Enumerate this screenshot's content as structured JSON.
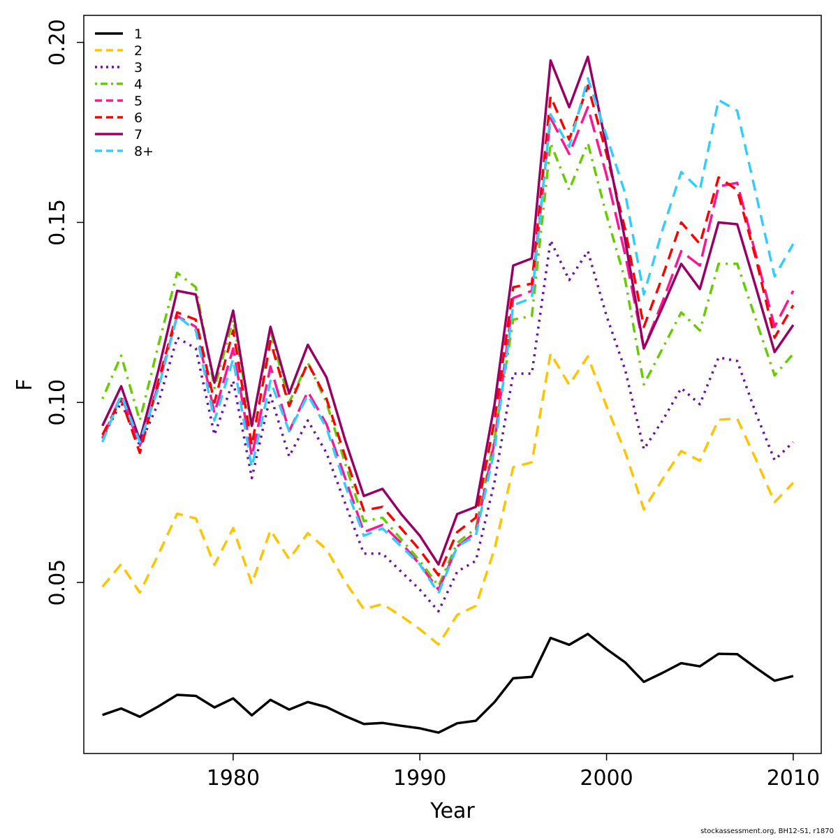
{
  "footer_text": "stockassessment.org, BH12-S1, r1870",
  "chart_data": {
    "type": "line",
    "title": "",
    "xlabel": "Year",
    "ylabel": "F",
    "xlim": [
      1972,
      2011.5
    ],
    "ylim": [
      0.0025,
      0.2075
    ],
    "xticks": [
      1980,
      1990,
      2000,
      2010
    ],
    "yticks": [
      0.05,
      0.1,
      0.15,
      0.2
    ],
    "ytick_labels": [
      "0.05",
      "0.10",
      "0.15",
      "0.20"
    ],
    "grid": false,
    "legend_position": "top-left",
    "x": [
      1973,
      1974,
      1975,
      1976,
      1977,
      1978,
      1979,
      1980,
      1981,
      1982,
      1983,
      1984,
      1985,
      1986,
      1987,
      1988,
      1989,
      1990,
      1991,
      1992,
      1993,
      1994,
      1995,
      1996,
      1997,
      1998,
      1999,
      2000,
      2001,
      2002,
      2003,
      2004,
      2005,
      2006,
      2007,
      2008,
      2009,
      2010
    ],
    "series": [
      {
        "name": "1",
        "color": "#000000",
        "dash": "solid",
        "values": [
          0.0132,
          0.015,
          0.0127,
          0.0156,
          0.0188,
          0.0185,
          0.0153,
          0.0178,
          0.0131,
          0.0174,
          0.0147,
          0.0168,
          0.0154,
          0.0129,
          0.0107,
          0.011,
          0.0102,
          0.0095,
          0.0083,
          0.0109,
          0.0116,
          0.0168,
          0.0234,
          0.0238,
          0.0346,
          0.0327,
          0.0357,
          0.0315,
          0.0278,
          0.0224,
          0.0249,
          0.0276,
          0.0267,
          0.0302,
          0.0301,
          0.0263,
          0.0227,
          0.024
        ]
      },
      {
        "name": "2",
        "color": "#FFC300",
        "dash": "dashed",
        "values": [
          0.0488,
          0.0551,
          0.0472,
          0.0578,
          0.0691,
          0.0678,
          0.0549,
          0.0651,
          0.0496,
          0.0645,
          0.0565,
          0.0637,
          0.0592,
          0.0502,
          0.0426,
          0.044,
          0.0407,
          0.037,
          0.0328,
          0.041,
          0.0435,
          0.0593,
          0.082,
          0.0834,
          0.1136,
          0.1049,
          0.1128,
          0.0989,
          0.0862,
          0.0703,
          0.0787,
          0.0865,
          0.0838,
          0.0952,
          0.0955,
          0.0842,
          0.0723,
          0.0777
        ]
      },
      {
        "name": "3",
        "color": "#6A0DAD",
        "dash": "dotted",
        "values": [
          0.09,
          0.1,
          0.088,
          0.1,
          0.118,
          0.115,
          0.091,
          0.106,
          0.079,
          0.102,
          0.085,
          0.095,
          0.086,
          0.072,
          0.058,
          0.058,
          0.053,
          0.048,
          0.042,
          0.053,
          0.056,
          0.078,
          0.108,
          0.108,
          0.145,
          0.134,
          0.142,
          0.124,
          0.109,
          0.087,
          0.095,
          0.104,
          0.0995,
          0.1125,
          0.1115,
          0.097,
          0.084,
          0.089
        ]
      },
      {
        "name": "4",
        "color": "#66CC00",
        "dash": "dashdot",
        "values": [
          0.101,
          0.113,
          0.095,
          0.116,
          0.136,
          0.132,
          0.104,
          0.123,
          0.093,
          0.12,
          0.1,
          0.111,
          0.1,
          0.083,
          0.067,
          0.068,
          0.062,
          0.056,
          0.049,
          0.061,
          0.065,
          0.09,
          0.123,
          0.124,
          0.172,
          0.159,
          0.172,
          0.152,
          0.134,
          0.105,
          0.115,
          0.125,
          0.12,
          0.1385,
          0.1385,
          0.123,
          0.1075,
          0.1135
        ]
      },
      {
        "name": "5",
        "color": "#FF1493",
        "dash": "longdash",
        "values": [
          0.09,
          0.102,
          0.088,
          0.105,
          0.124,
          0.121,
          0.097,
          0.115,
          0.085,
          0.11,
          0.092,
          0.103,
          0.094,
          0.079,
          0.064,
          0.066,
          0.061,
          0.055,
          0.048,
          0.06,
          0.064,
          0.089,
          0.129,
          0.131,
          0.179,
          0.169,
          0.182,
          0.163,
          0.141,
          0.115,
          0.128,
          0.142,
          0.138,
          0.16,
          0.161,
          0.141,
          0.121,
          0.131
        ]
      },
      {
        "name": "6",
        "color": "#FF0000",
        "dash": "dashed",
        "values": [
          0.091,
          0.101,
          0.086,
          0.106,
          0.125,
          0.123,
          0.1,
          0.12,
          0.088,
          0.117,
          0.099,
          0.111,
          0.101,
          0.085,
          0.07,
          0.071,
          0.065,
          0.059,
          0.052,
          0.064,
          0.068,
          0.095,
          0.132,
          0.133,
          0.185,
          0.173,
          0.188,
          0.169,
          0.148,
          0.121,
          0.135,
          0.15,
          0.144,
          0.1625,
          0.159,
          0.14,
          0.118,
          0.127
        ]
      },
      {
        "name": "7",
        "color": "#990066",
        "dash": "solid",
        "values": [
          0.0935,
          0.1045,
          0.0895,
          0.109,
          0.131,
          0.13,
          0.1055,
          0.1255,
          0.0935,
          0.121,
          0.1025,
          0.116,
          0.107,
          0.0895,
          0.074,
          0.076,
          0.069,
          0.063,
          0.055,
          0.069,
          0.071,
          0.0995,
          0.138,
          0.14,
          0.195,
          0.182,
          0.196,
          0.171,
          0.145,
          0.115,
          0.1265,
          0.1385,
          0.1315,
          0.15,
          0.1495,
          0.132,
          0.114,
          0.1215
        ]
      },
      {
        "name": "8+",
        "color": "#33CCFF",
        "dash": "dashed",
        "values": [
          0.089,
          0.102,
          0.089,
          0.104,
          0.124,
          0.12,
          0.095,
          0.112,
          0.082,
          0.106,
          0.092,
          0.102,
          0.093,
          0.077,
          0.063,
          0.065,
          0.06,
          0.055,
          0.047,
          0.06,
          0.063,
          0.087,
          0.127,
          0.129,
          0.18,
          0.171,
          0.19,
          0.174,
          0.158,
          0.13,
          0.148,
          0.164,
          0.159,
          0.184,
          0.181,
          0.158,
          0.135,
          0.144
        ]
      }
    ]
  }
}
